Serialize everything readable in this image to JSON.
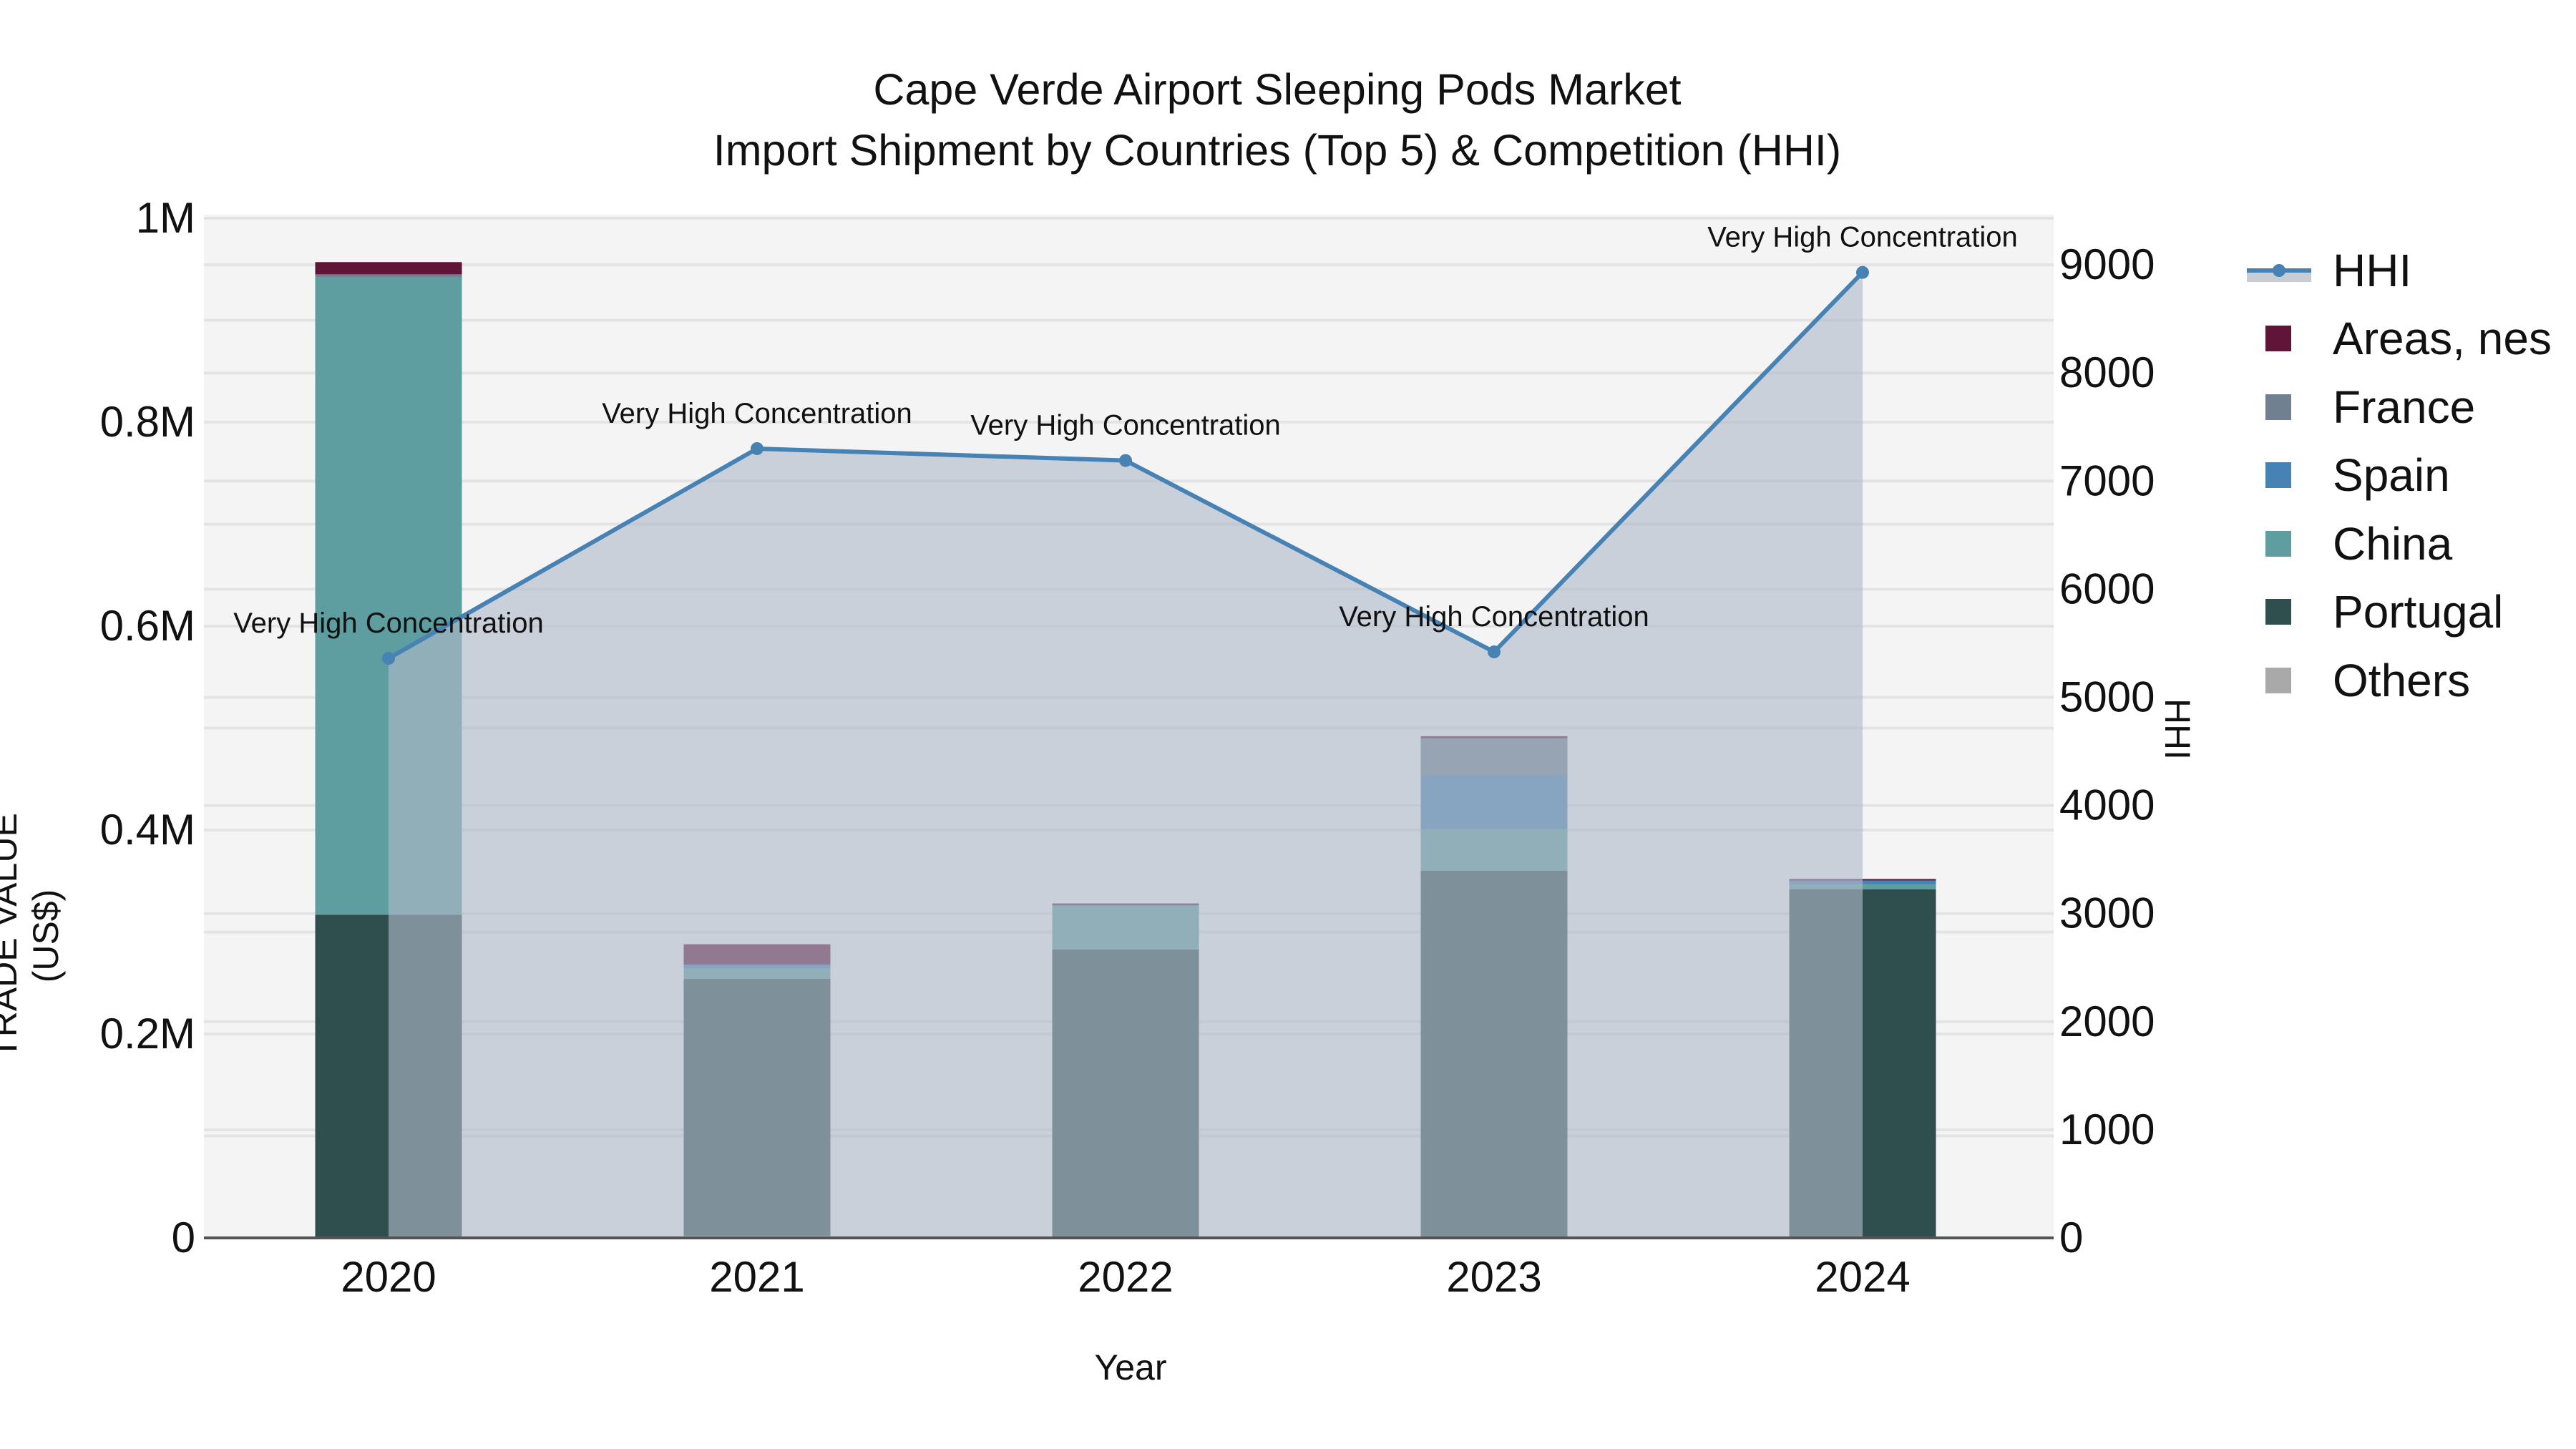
{
  "title": {
    "line1": "Cape Verde Airport Sleeping Pods Market",
    "line2": "Import Shipment by Countries (Top 5) & Competition (HHI)"
  },
  "axes": {
    "x_title": "Year",
    "y_left_title": "TRADE VALUE (US$)",
    "y_right_title": "HHI",
    "y_left_ticks": [
      "0",
      "0.2M",
      "0.4M",
      "0.6M",
      "0.8M",
      "1M"
    ],
    "y_right_ticks": [
      "0",
      "1000",
      "2000",
      "3000",
      "4000",
      "5000",
      "6000",
      "7000",
      "8000",
      "9000"
    ],
    "x_ticks": [
      "2020",
      "2021",
      "2022",
      "2023",
      "2024"
    ]
  },
  "legend": {
    "items": [
      {
        "label": "HHI",
        "type": "line",
        "color": "#4682b4"
      },
      {
        "label": "Areas, nes",
        "type": "bar",
        "color": "#5f1438"
      },
      {
        "label": "France",
        "type": "bar",
        "color": "#708090"
      },
      {
        "label": "Spain",
        "type": "bar",
        "color": "#4682b4"
      },
      {
        "label": "China",
        "type": "bar",
        "color": "#5f9ea0"
      },
      {
        "label": "Portugal",
        "type": "bar",
        "color": "#2f4f4f"
      },
      {
        "label": "Others",
        "type": "bar",
        "color": "#a9a9a9"
      }
    ]
  },
  "annotations": [
    {
      "year": "2020",
      "text": "Very High Concentration"
    },
    {
      "year": "2021",
      "text": "Very High Concentration"
    },
    {
      "year": "2022",
      "text": "Very High Concentration"
    },
    {
      "year": "2023",
      "text": "Very High Concentration"
    },
    {
      "year": "2024",
      "text": "Very High Concentration"
    }
  ],
  "chart_data": {
    "type": "bar",
    "stacked": true,
    "title": "Cape Verde Airport Sleeping Pods Market — Import Shipment by Countries (Top 5) & Competition (HHI)",
    "xlabel": "Year",
    "ylabel": "TRADE VALUE (US$)",
    "y2label": "HHI",
    "ylim": [
      0,
      1000000
    ],
    "y2lim": [
      0,
      9450
    ],
    "grid": true,
    "legend_position": "right",
    "categories": [
      "2020",
      "2021",
      "2022",
      "2023",
      "2024"
    ],
    "series": [
      {
        "name": "Others",
        "type": "bar",
        "color": "#a9a9a9",
        "values": [
          0,
          2000,
          0,
          0,
          0
        ]
      },
      {
        "name": "Portugal",
        "type": "bar",
        "color": "#2f4f4f",
        "values": [
          317000,
          252000,
          283000,
          360000,
          342000
        ]
      },
      {
        "name": "China",
        "type": "bar",
        "color": "#5f9ea0",
        "values": [
          625000,
          10000,
          43000,
          41000,
          5000
        ]
      },
      {
        "name": "Spain",
        "type": "bar",
        "color": "#4682b4",
        "values": [
          0,
          4000,
          1000,
          53000,
          4000
        ]
      },
      {
        "name": "France",
        "type": "bar",
        "color": "#708090",
        "values": [
          3000,
          0,
          0,
          36000,
          0
        ]
      },
      {
        "name": "Areas, nes",
        "type": "bar",
        "color": "#5f1438",
        "values": [
          12000,
          20000,
          1000,
          2000,
          1000
        ]
      },
      {
        "name": "HHI",
        "type": "line+area",
        "axis": "right",
        "color": "#4682b4",
        "values": [
          5360,
          7300,
          7190,
          5420,
          8930
        ]
      }
    ],
    "annotations": [
      "Very High Concentration",
      "Very High Concentration",
      "Very High Concentration",
      "Very High Concentration",
      "Very High Concentration"
    ]
  }
}
